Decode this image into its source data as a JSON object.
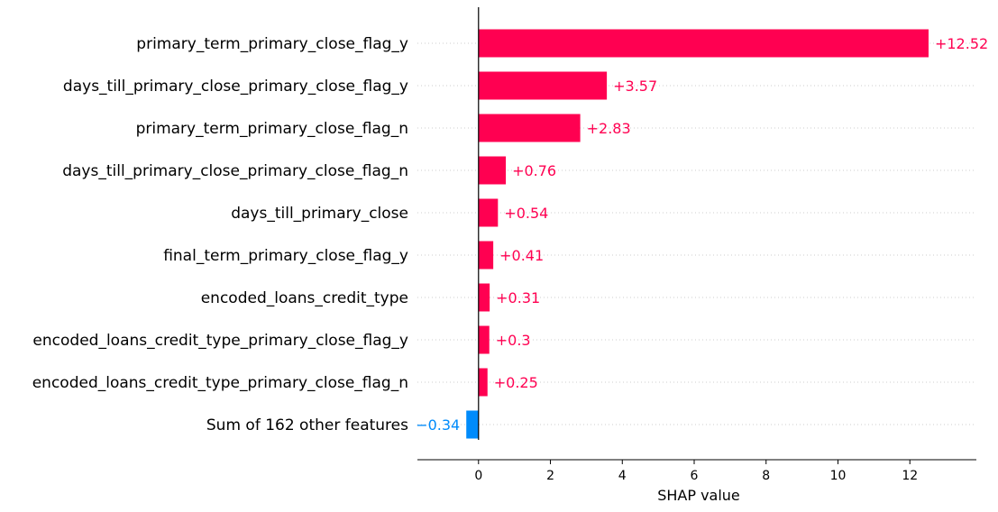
{
  "chart_data": {
    "type": "bar",
    "orientation": "horizontal",
    "categories": [
      "primary_term_primary_close_flag_y",
      "days_till_primary_close_primary_close_flag_y",
      "primary_term_primary_close_flag_n",
      "days_till_primary_close_primary_close_flag_n",
      "days_till_primary_close",
      "final_term_primary_close_flag_y",
      "encoded_loans_credit_type",
      "encoded_loans_credit_type_primary_close_flag_y",
      "encoded_loans_credit_type_primary_close_flag_n",
      "Sum of 162 other features"
    ],
    "values": [
      12.52,
      3.57,
      2.83,
      0.76,
      0.54,
      0.41,
      0.31,
      0.3,
      0.25,
      -0.34
    ],
    "value_labels": [
      "+12.52",
      "+3.57",
      "+2.83",
      "+0.76",
      "+0.54",
      "+0.41",
      "+0.31",
      "+0.3",
      "+0.25",
      "−0.34"
    ],
    "xlabel": "SHAP value",
    "xlim": [
      -1.7,
      13.85
    ],
    "xticks": [
      0,
      2,
      4,
      6,
      8,
      10,
      12
    ],
    "xtick_labels": [
      "0",
      "2",
      "4",
      "6",
      "8",
      "10",
      "12"
    ],
    "positive_color": "#ff0051",
    "negative_color": "#008bfb",
    "grid": "dotted horizontal row guides"
  }
}
